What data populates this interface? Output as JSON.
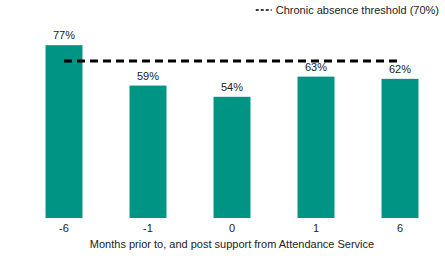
{
  "chart_data": {
    "type": "bar",
    "x_label": "Months prior to, and post support from Attendance Service",
    "categories": [
      "-6",
      "-1",
      "0",
      "1",
      "6"
    ],
    "values": [
      77,
      59,
      54,
      63,
      62
    ],
    "value_labels": [
      "77%",
      "59%",
      "54%",
      "63%",
      "62%"
    ],
    "color": "#009485",
    "ylim": [
      0,
      90
    ],
    "data_labels": true,
    "tick_labels": "x",
    "grid": false,
    "legend": "top-right",
    "threshold": {
      "value": 70,
      "label": "Chronic absence threshold (70%)",
      "line_style": "dashed"
    }
  }
}
